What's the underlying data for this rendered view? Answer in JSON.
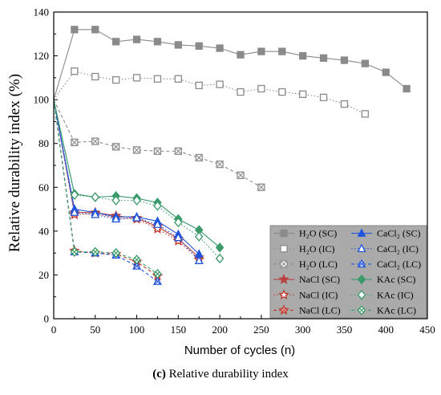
{
  "caption": {
    "label": "(c)",
    "text": "Relative durability index"
  },
  "chart_data": {
    "type": "line",
    "xlabel": "Number of cycles (n)",
    "ylabel": "Relative durability index (%)",
    "xlim": [
      0,
      450
    ],
    "ylim": [
      0,
      140
    ],
    "xticks": [
      0,
      50,
      100,
      150,
      200,
      250,
      300,
      350,
      400,
      450
    ],
    "yticks": [
      0,
      20,
      40,
      60,
      80,
      100,
      120,
      140
    ],
    "grid": false,
    "legend_position": "bottom-right",
    "series": [
      {
        "name": "H₂O (SC)",
        "color": "#8a8a8a",
        "marker": "square-filled",
        "dash": "solid",
        "x": [
          0,
          25,
          50,
          75,
          100,
          125,
          150,
          175,
          200,
          225,
          250,
          275,
          300,
          325,
          350,
          375,
          400,
          425
        ],
        "y": [
          100,
          132,
          132,
          126.5,
          127.5,
          126.5,
          125,
          124.5,
          123.5,
          120.5,
          122,
          122,
          120,
          119,
          118,
          116.5,
          112.5,
          105
        ]
      },
      {
        "name": "H₂O (IC)",
        "color": "#8a8a8a",
        "marker": "square-open",
        "dash": "dot",
        "x": [
          0,
          25,
          50,
          75,
          100,
          125,
          150,
          175,
          200,
          225,
          250,
          275,
          300,
          325,
          350,
          375
        ],
        "y": [
          100,
          113,
          110.5,
          109,
          110,
          109.5,
          109.5,
          106.5,
          107,
          103.5,
          105,
          103.5,
          102.5,
          101,
          98,
          93.5
        ]
      },
      {
        "name": "H₂O (LC)",
        "color": "#8a8a8a",
        "marker": "square-x",
        "dash": "dash",
        "x": [
          0,
          25,
          50,
          75,
          100,
          125,
          150,
          175,
          200,
          225,
          250
        ],
        "y": [
          100,
          80.5,
          81,
          78.5,
          77,
          76.5,
          76.5,
          73.5,
          70.5,
          65.5,
          60
        ]
      },
      {
        "name": "NaCl (SC)",
        "color": "#b84040",
        "marker": "star-filled",
        "dash": "solid",
        "x": [
          0,
          25,
          50,
          75,
          100,
          125,
          150,
          175
        ],
        "y": [
          100,
          48.5,
          48.5,
          47,
          46,
          42,
          36.5,
          28
        ]
      },
      {
        "name": "NaCl (IC)",
        "color": "#c0392b",
        "marker": "star-open",
        "dash": "dot",
        "x": [
          0,
          25,
          50,
          75,
          100,
          125,
          150,
          175
        ],
        "y": [
          100,
          47.5,
          48,
          46,
          45.5,
          41,
          35.5,
          27
        ]
      },
      {
        "name": "NaCl (LC)",
        "color": "#c0392b",
        "marker": "star-x",
        "dash": "dash",
        "x": [
          0,
          25,
          50,
          75,
          100,
          125
        ],
        "y": [
          100,
          31,
          30,
          29.5,
          26,
          19.5
        ]
      },
      {
        "name": "CaCl₂ (SC)",
        "color": "#2255dd",
        "marker": "triangle-filled",
        "dash": "solid",
        "x": [
          0,
          25,
          50,
          75,
          100,
          125,
          150,
          175
        ],
        "y": [
          100,
          50,
          48.5,
          46.5,
          46.5,
          44.5,
          38.5,
          29.5
        ]
      },
      {
        "name": "CaCl₂ (IC)",
        "color": "#2255dd",
        "marker": "triangle-open",
        "dash": "dot",
        "x": [
          0,
          25,
          50,
          75,
          100,
          125,
          150,
          175
        ],
        "y": [
          100,
          48.5,
          47.5,
          45.5,
          46,
          43,
          37,
          26.5
        ]
      },
      {
        "name": "CaCl₂ (LC)",
        "color": "#2255dd",
        "marker": "triangle-x",
        "dash": "dash",
        "x": [
          0,
          25,
          50,
          75,
          100,
          125
        ],
        "y": [
          100,
          30.5,
          30,
          29,
          24,
          17
        ]
      },
      {
        "name": "KAc (SC)",
        "color": "#3a9a6a",
        "marker": "diamond-filled",
        "dash": "solid",
        "x": [
          0,
          25,
          50,
          75,
          100,
          125,
          150,
          175,
          200
        ],
        "y": [
          100,
          57,
          55.5,
          56,
          55,
          53,
          45.5,
          40.5,
          32.5
        ]
      },
      {
        "name": "KAc (IC)",
        "color": "#3a9a6a",
        "marker": "diamond-open",
        "dash": "dot",
        "x": [
          0,
          25,
          50,
          75,
          100,
          125,
          150,
          175,
          200
        ],
        "y": [
          100,
          56.5,
          55.5,
          54,
          54,
          51.5,
          44,
          37.5,
          27.5
        ]
      },
      {
        "name": "KAc (LC)",
        "color": "#3a9a6a",
        "marker": "diamond-x",
        "dash": "dash",
        "x": [
          0,
          25,
          50,
          75,
          100,
          125
        ],
        "y": [
          100,
          30.5,
          30.5,
          30,
          27,
          20.5
        ]
      }
    ]
  }
}
